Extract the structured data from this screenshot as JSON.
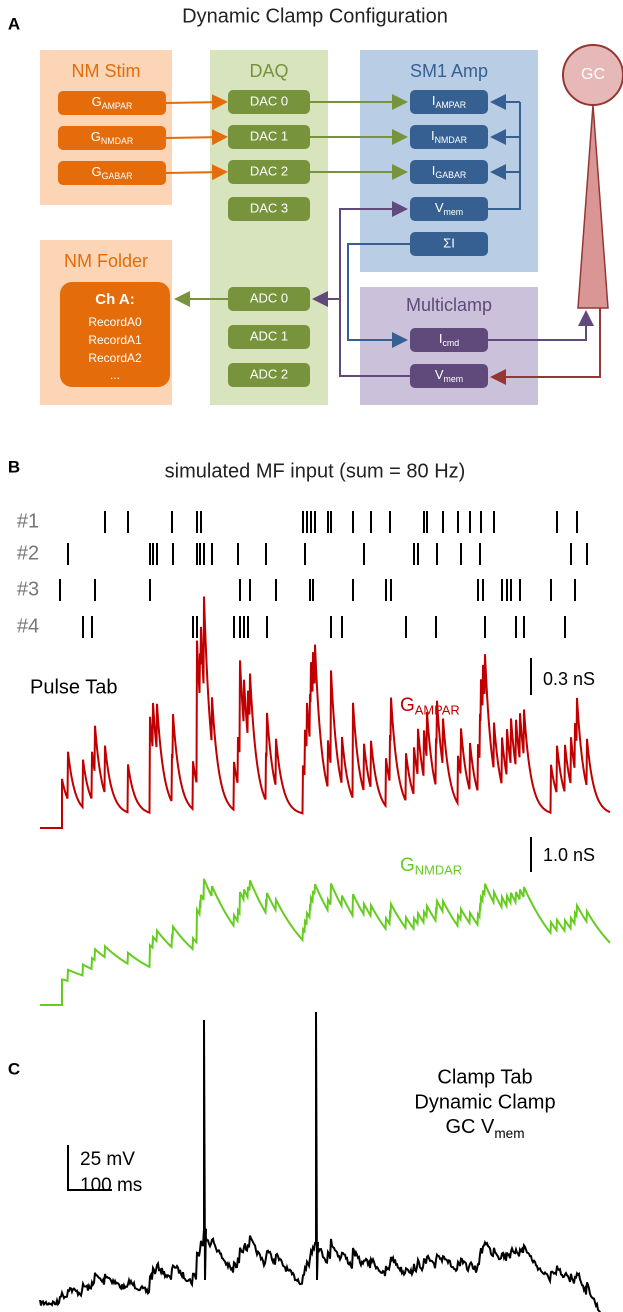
{
  "panel_a": {
    "label": "A",
    "title": "Dynamic Clamp Configuration",
    "nm_stim": {
      "title": "NM Stim",
      "items": [
        {
          "base": "G",
          "sub": "AMPAR"
        },
        {
          "base": "G",
          "sub": "NMDAR"
        },
        {
          "base": "G",
          "sub": "GABAR"
        }
      ]
    },
    "daq": {
      "title": "DAQ",
      "dac": [
        "DAC 0",
        "DAC 1",
        "DAC 2",
        "DAC 3"
      ],
      "adc": [
        "ADC 0",
        "ADC 1",
        "ADC 2"
      ]
    },
    "sm1_amp": {
      "title": "SM1 Amp",
      "items": [
        {
          "base": "I",
          "sub": "AMPAR"
        },
        {
          "base": "I",
          "sub": "NMDAR"
        },
        {
          "base": "I",
          "sub": "GABAR"
        },
        {
          "base": "V",
          "sub": "mem"
        }
      ],
      "sum": "ΣI"
    },
    "multiclamp": {
      "title": "Multiclamp",
      "items": [
        {
          "base": "I",
          "sub": "cmd"
        },
        {
          "base": "V",
          "sub": "mem"
        }
      ]
    },
    "gc": "GC",
    "nm_folder": {
      "title": "NM Folder",
      "channel": "Ch A:",
      "records": [
        "RecordA0",
        "RecordA1",
        "RecordA2",
        "..."
      ]
    }
  },
  "panel_b": {
    "label": "B",
    "title": "simulated MF input (sum = 80 Hz)",
    "rows": [
      "#1",
      "#2",
      "#3",
      "#4"
    ],
    "pulse_tab": "Pulse Tab",
    "ampar_scale": "0.3 nS",
    "ampar_label": {
      "base": "G",
      "sub": "AMPAR"
    },
    "nmdar_scale": "1.0 nS",
    "nmdar_label": {
      "base": "G",
      "sub": "NMDAR"
    }
  },
  "panel_c": {
    "label": "C",
    "lines": [
      "Clamp Tab",
      "Dynamic Clamp"
    ],
    "vmem_label": {
      "base": "GC V",
      "sub": "mem"
    },
    "scale_v": "25 mV",
    "scale_t": "100 ms"
  }
}
